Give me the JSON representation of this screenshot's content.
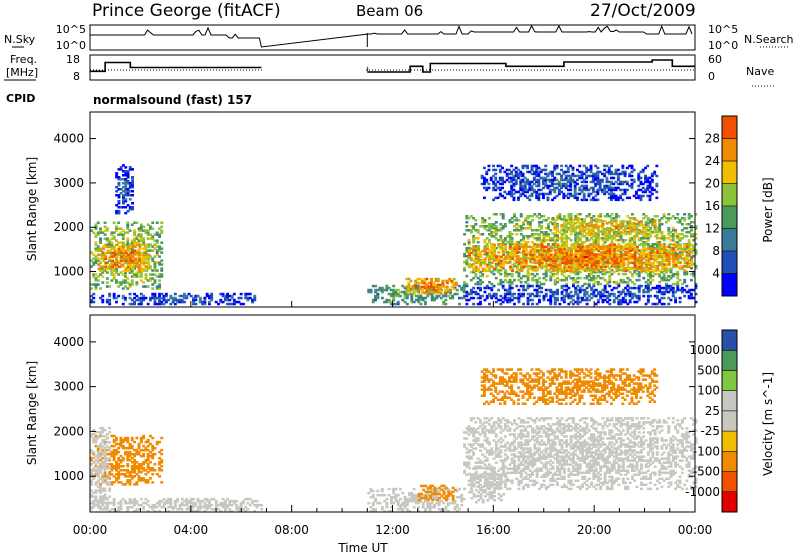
{
  "header": {
    "station": "Prince George (fitACF)",
    "beam": "Beam 06",
    "date": "27/Oct/2009"
  },
  "strips": {
    "nsky_label": "N.Sky",
    "nsky_ticks": [
      "10^5",
      "10^0"
    ],
    "nsearch_label": "N.Search",
    "nsearch_ticks": [
      "10^5",
      "10^0"
    ],
    "freq_label_1": "Freq.",
    "freq_label_2": "[MHz]",
    "freq_ticks": [
      "18",
      "8"
    ],
    "nave_label": "Nave",
    "nave_ticks": [
      "60",
      "0"
    ],
    "cpid_label": "CPID",
    "cpid_value": "normalsound (fast) 157"
  },
  "colors": {
    "power": [
      "#0000ff",
      "#1f4fb8",
      "#3a7a9a",
      "#4c9a5a",
      "#8bc43a",
      "#f0c000",
      "#f08a00",
      "#f05000",
      "#e00000"
    ],
    "velocity": [
      "#e00000",
      "#f05000",
      "#f08a00",
      "#f0c000",
      "#c8c8c0",
      "#c8c8c0",
      "#80c840",
      "#4c9a5a",
      "#2a4fa8"
    ],
    "ground": "#c8c8c0"
  },
  "chart_data": [
    {
      "type": "heatmap",
      "panel": "power",
      "ylabel": "Slant Range [km]",
      "yticks": [
        "1000",
        "2000",
        "3000",
        "4000"
      ],
      "ylim": [
        200,
        4600
      ],
      "xlim": [
        0,
        24
      ],
      "colorbar_label": "Power [dB]",
      "colorbar_ticks": [
        "4",
        "8",
        "12",
        "16",
        "20",
        "24",
        "28"
      ],
      "regions": [
        {
          "t0": 0.0,
          "t1": 2.8,
          "r0": 600,
          "r1": 2100,
          "value": 20
        },
        {
          "t0": 0.3,
          "t1": 2.3,
          "r0": 1000,
          "r1": 1600,
          "value": 28
        },
        {
          "t0": 1.0,
          "t1": 1.7,
          "r0": 2300,
          "r1": 3400,
          "value": 8
        },
        {
          "t0": 0.0,
          "t1": 6.5,
          "r0": 250,
          "r1": 500,
          "value": 8
        },
        {
          "t0": 11.0,
          "t1": 14.8,
          "r0": 250,
          "r1": 700,
          "value": 16
        },
        {
          "t0": 12.5,
          "t1": 14.5,
          "r0": 500,
          "r1": 850,
          "value": 28
        },
        {
          "t0": 14.8,
          "t1": 24.0,
          "r0": 700,
          "r1": 2300,
          "value": 20
        },
        {
          "t0": 15.0,
          "t1": 23.9,
          "r0": 1000,
          "r1": 1600,
          "value": 28
        },
        {
          "t0": 18.3,
          "t1": 22.5,
          "r0": 1800,
          "r1": 2200,
          "value": 24
        },
        {
          "t0": 15.5,
          "t1": 22.5,
          "r0": 2600,
          "r1": 3400,
          "value": 8
        },
        {
          "t0": 14.8,
          "t1": 24.0,
          "r0": 250,
          "r1": 700,
          "value": 8
        }
      ]
    },
    {
      "type": "heatmap",
      "panel": "velocity",
      "ylabel": "Slant Range [km]",
      "yticks": [
        "1000",
        "2000",
        "3000",
        "4000"
      ],
      "ylim": [
        200,
        4600
      ],
      "xlim": [
        0,
        24
      ],
      "xlabel": "Time UT",
      "xticks": [
        "00:00",
        "04:00",
        "08:00",
        "12:00",
        "16:00",
        "20:00",
        "00:00"
      ],
      "colorbar_label": "Velocity [m s^-1]",
      "colorbar_ticks": [
        "-1000",
        "-500",
        "-100",
        "-25",
        "25",
        "100",
        "500",
        "1000"
      ],
      "regions": [
        {
          "t0": 0.0,
          "t1": 2.8,
          "r0": 800,
          "r1": 1900,
          "value": -300
        },
        {
          "t0": 0.0,
          "t1": 0.8,
          "r0": 300,
          "r1": 2100,
          "value": 0
        },
        {
          "t0": 0.0,
          "t1": 7.0,
          "r0": 200,
          "r1": 500,
          "value": 0
        },
        {
          "t0": 11.0,
          "t1": 14.8,
          "r0": 200,
          "r1": 700,
          "value": 60
        },
        {
          "t0": 13.0,
          "t1": 14.5,
          "r0": 450,
          "r1": 800,
          "value": -200
        },
        {
          "t0": 14.8,
          "t1": 24.0,
          "r0": 700,
          "r1": 2300,
          "value": 0
        },
        {
          "t0": 15.5,
          "t1": 22.5,
          "r0": 2600,
          "r1": 3400,
          "value": -300
        },
        {
          "t0": 15.0,
          "t1": 16.5,
          "r0": 400,
          "r1": 1200,
          "value": 60
        }
      ]
    }
  ],
  "strip_data": {
    "data_gaps": [
      [
        6.8,
        11.0
      ]
    ],
    "freq_mhz": [
      [
        0.0,
        11.5
      ],
      [
        0.6,
        15.0
      ],
      [
        1.6,
        13.0
      ],
      [
        11.0,
        11.2
      ],
      [
        12.7,
        13.5
      ],
      [
        13.2,
        11.2
      ],
      [
        13.5,
        14.6
      ],
      [
        16.5,
        13.5
      ],
      [
        18.8,
        15.2
      ],
      [
        22.3,
        16.0
      ],
      [
        23.1,
        13.5
      ],
      [
        24.0,
        13.5
      ]
    ],
    "nave": [
      20,
      30,
      25
    ]
  }
}
